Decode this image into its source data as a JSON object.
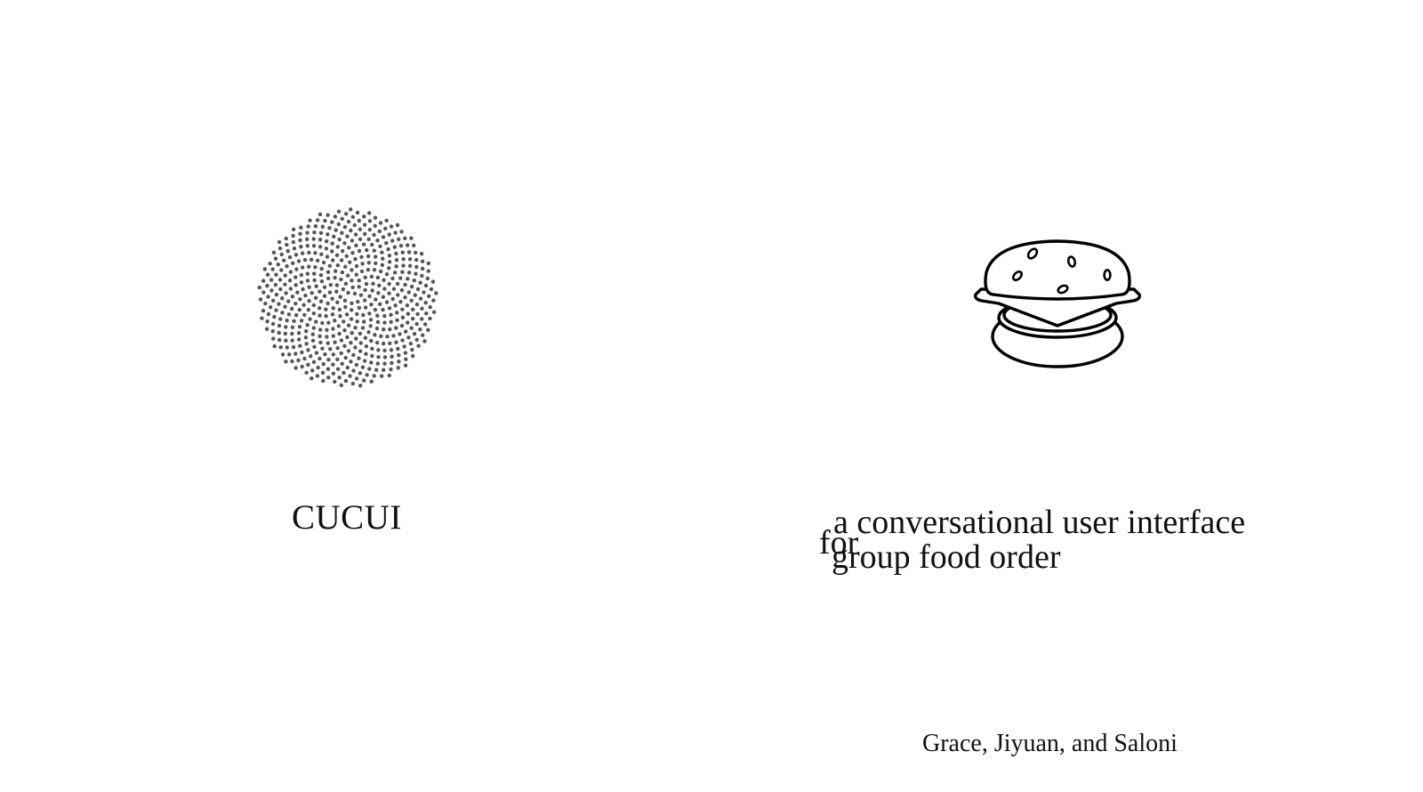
{
  "logo": {
    "icon": "dot-spiral-icon",
    "dot_color": "#555555"
  },
  "title": "CUCUI",
  "illustration": {
    "icon": "burger-icon",
    "stroke_color": "#000000"
  },
  "tagline": {
    "line1": "a conversational user interface",
    "word_for": "for",
    "line2": "group food order"
  },
  "authors": "Grace, Jiyuan, and Saloni"
}
